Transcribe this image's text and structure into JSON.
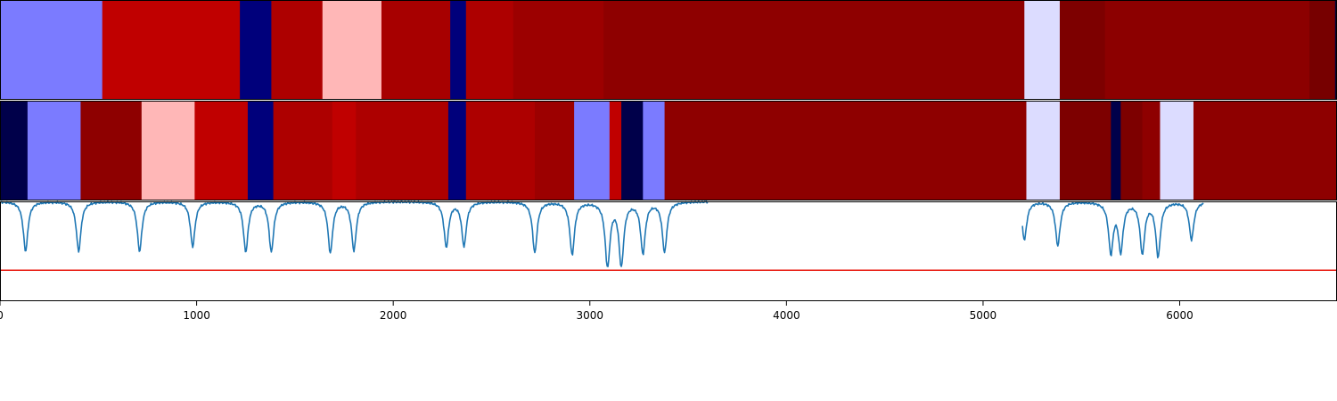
{
  "chart_data": [
    {
      "type": "heatmap",
      "panel": "segments-top",
      "colormap": "seismic",
      "xlim": [
        0,
        6800
      ],
      "segments": [
        {
          "x0": 0,
          "x1": 520,
          "color": "#7b7bff"
        },
        {
          "x0": 520,
          "x1": 1220,
          "color": "#c00000"
        },
        {
          "x0": 1220,
          "x1": 1380,
          "color": "#00007b"
        },
        {
          "x0": 1380,
          "x1": 1640,
          "color": "#ad0000"
        },
        {
          "x0": 1640,
          "x1": 1940,
          "color": "#ffb7b7"
        },
        {
          "x0": 1940,
          "x1": 2290,
          "color": "#a70000"
        },
        {
          "x0": 2290,
          "x1": 2370,
          "color": "#00007b"
        },
        {
          "x0": 2370,
          "x1": 2610,
          "color": "#ad0000"
        },
        {
          "x0": 2610,
          "x1": 3070,
          "color": "#9c0000"
        },
        {
          "x0": 3070,
          "x1": 5210,
          "color": "#8e0000"
        },
        {
          "x0": 5210,
          "x1": 5390,
          "color": "#dcdcff"
        },
        {
          "x0": 5390,
          "x1": 5620,
          "color": "#7d0000"
        },
        {
          "x0": 5620,
          "x1": 6660,
          "color": "#8c0000"
        },
        {
          "x0": 6660,
          "x1": 6790,
          "color": "#770000"
        },
        {
          "x0": 6790,
          "x1": 6800,
          "color": "#00003c"
        }
      ]
    },
    {
      "type": "heatmap",
      "panel": "segments-middle",
      "colormap": "seismic",
      "xlim": [
        0,
        6800
      ],
      "segments": [
        {
          "x0": 0,
          "x1": 140,
          "color": "#00004a"
        },
        {
          "x0": 140,
          "x1": 410,
          "color": "#7b7bff"
        },
        {
          "x0": 410,
          "x1": 720,
          "color": "#8e0000"
        },
        {
          "x0": 720,
          "x1": 990,
          "color": "#ffb7b7"
        },
        {
          "x0": 990,
          "x1": 1260,
          "color": "#c00000"
        },
        {
          "x0": 1260,
          "x1": 1390,
          "color": "#00007b"
        },
        {
          "x0": 1390,
          "x1": 1690,
          "color": "#ad0000"
        },
        {
          "x0": 1690,
          "x1": 1810,
          "color": "#c00000"
        },
        {
          "x0": 1810,
          "x1": 2280,
          "color": "#ad0000"
        },
        {
          "x0": 2280,
          "x1": 2370,
          "color": "#00007b"
        },
        {
          "x0": 2370,
          "x1": 2720,
          "color": "#ad0000"
        },
        {
          "x0": 2720,
          "x1": 2920,
          "color": "#9c0000"
        },
        {
          "x0": 2920,
          "x1": 3100,
          "color": "#7b7bff"
        },
        {
          "x0": 3100,
          "x1": 3160,
          "color": "#c00000"
        },
        {
          "x0": 3160,
          "x1": 3270,
          "color": "#00004a"
        },
        {
          "x0": 3270,
          "x1": 3380,
          "color": "#7b7bff"
        },
        {
          "x0": 3380,
          "x1": 5220,
          "color": "#8e0000"
        },
        {
          "x0": 5220,
          "x1": 5390,
          "color": "#dcdcff"
        },
        {
          "x0": 5390,
          "x1": 5650,
          "color": "#7d0000"
        },
        {
          "x0": 5650,
          "x1": 5700,
          "color": "#00004a"
        },
        {
          "x0": 5700,
          "x1": 5810,
          "color": "#7d0000"
        },
        {
          "x0": 5810,
          "x1": 5900,
          "color": "#8e0000"
        },
        {
          "x0": 5900,
          "x1": 6070,
          "color": "#dcdcff"
        },
        {
          "x0": 6070,
          "x1": 6800,
          "color": "#8e0000"
        }
      ]
    },
    {
      "type": "line",
      "panel": "signal",
      "xlim": [
        0,
        6800
      ],
      "ylim": [
        0,
        1
      ],
      "xticks": [
        0,
        1000,
        2000,
        3000,
        4000,
        5000,
        6000
      ],
      "xtick_labels": [
        "0",
        "1000",
        "2000",
        "3000",
        "4000",
        "5000",
        "6000"
      ],
      "line_color": "#1f77b4",
      "threshold": {
        "y": 0.31,
        "color": "#e8190f"
      },
      "baseline": 1.0,
      "x_extent": [
        0,
        6120
      ],
      "gaps": [
        [
          3600,
          5200
        ]
      ],
      "dips": [
        {
          "x": 130,
          "y": 0.5
        },
        {
          "x": 400,
          "y": 0.5
        },
        {
          "x": 710,
          "y": 0.5
        },
        {
          "x": 980,
          "y": 0.55
        },
        {
          "x": 1250,
          "y": 0.5
        },
        {
          "x": 1380,
          "y": 0.5
        },
        {
          "x": 1680,
          "y": 0.49
        },
        {
          "x": 1800,
          "y": 0.51
        },
        {
          "x": 2270,
          "y": 0.55
        },
        {
          "x": 2360,
          "y": 0.56
        },
        {
          "x": 2720,
          "y": 0.49
        },
        {
          "x": 2910,
          "y": 0.47
        },
        {
          "x": 3090,
          "y": 0.34
        },
        {
          "x": 3160,
          "y": 0.36
        },
        {
          "x": 3270,
          "y": 0.49
        },
        {
          "x": 3380,
          "y": 0.5
        },
        {
          "x": 5210,
          "y": 0.62
        },
        {
          "x": 5380,
          "y": 0.56
        },
        {
          "x": 5650,
          "y": 0.5
        },
        {
          "x": 5700,
          "y": 0.52
        },
        {
          "x": 5810,
          "y": 0.49
        },
        {
          "x": 5890,
          "y": 0.46
        },
        {
          "x": 6060,
          "y": 0.62
        }
      ]
    }
  ]
}
